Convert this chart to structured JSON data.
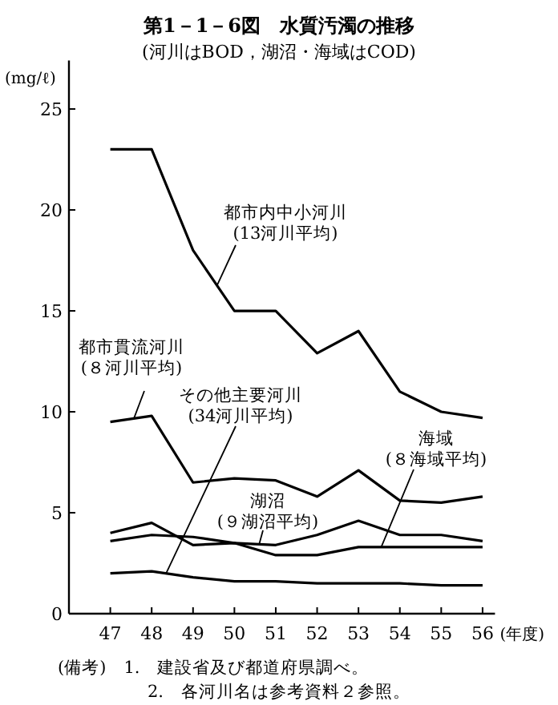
{
  "chart_data": {
    "type": "line",
    "title": "第1－1－6図　水質汚濁の推移",
    "subtitle": "(河川はBOD，湖沼・海域はCOD)",
    "ylabel": "(mg/ℓ)",
    "xlabel": "(年度)",
    "x": [
      47,
      48,
      49,
      50,
      51,
      52,
      53,
      54,
      55,
      56
    ],
    "xlim": [
      46,
      56.3
    ],
    "xticks": [
      47,
      48,
      49,
      50,
      51,
      52,
      53,
      54,
      55,
      56
    ],
    "ylim": [
      0,
      27.4
    ],
    "yticks": [
      0,
      5,
      10,
      15,
      20,
      25
    ],
    "grid": false,
    "marker": "none",
    "line_style": "solid",
    "series": [
      {
        "name": "都市内中小河川\n(13河川平均)",
        "color": "#000000",
        "values": [
          23,
          23,
          18,
          15,
          15,
          12.9,
          14,
          11,
          10,
          9.7
        ]
      },
      {
        "name": "都市貫流河川\n(８河川平均)",
        "color": "#000000",
        "values": [
          9.5,
          9.8,
          6.5,
          6.7,
          6.6,
          5.8,
          7.1,
          5.6,
          5.5,
          5.8
        ]
      },
      {
        "name": "その他主要河川\n(34河川平均)",
        "color": "#000000",
        "values": [
          2.0,
          2.1,
          1.8,
          1.6,
          1.6,
          1.5,
          1.5,
          1.5,
          1.4,
          1.4
        ]
      },
      {
        "name": "湖沼\n(９湖沼平均)",
        "color": "#000000",
        "values": [
          4.0,
          4.5,
          3.4,
          3.5,
          3.4,
          3.9,
          4.6,
          3.9,
          3.9,
          3.6
        ]
      },
      {
        "name": "海域\n(８海域平均)",
        "color": "#000000",
        "values": [
          3.6,
          3.9,
          3.8,
          3.5,
          2.9,
          2.9,
          3.3,
          3.3,
          3.3,
          3.3
        ]
      }
    ],
    "annotations": [
      "(備考)　1.　建設省及び都道府県調べ。",
      "2.　各河川名は参考資料２参照。"
    ]
  }
}
